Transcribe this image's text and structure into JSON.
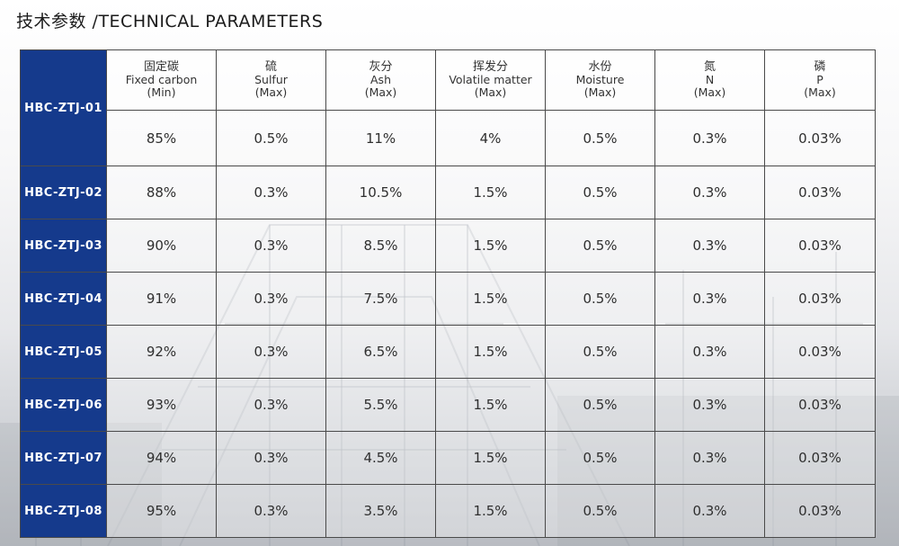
{
  "title": "技术参数 /TECHNICAL PARAMETERS",
  "columns": [
    {
      "cn": "固定碳",
      "en": "Fixed carbon",
      "limit": "(Min)"
    },
    {
      "cn": "硫",
      "en": "Sulfur",
      "limit": "(Max)"
    },
    {
      "cn": "灰分",
      "en": "Ash",
      "limit": "(Max)"
    },
    {
      "cn": "挥发分",
      "en": "Volatile matter",
      "limit": "(Max)"
    },
    {
      "cn": "水份",
      "en": "Moisture",
      "limit": "(Max)"
    },
    {
      "cn": "氮",
      "en": "N",
      "limit": "(Max)"
    },
    {
      "cn": "磷",
      "en": "P",
      "limit": "(Max)"
    }
  ],
  "rows": [
    {
      "model": "HBC-ZTJ-01",
      "values": [
        "85%",
        "0.5%",
        "11%",
        "4%",
        "0.5%",
        "0.3%",
        "0.03%"
      ]
    },
    {
      "model": "HBC-ZTJ-02",
      "values": [
        "88%",
        "0.3%",
        "10.5%",
        "1.5%",
        "0.5%",
        "0.3%",
        "0.03%"
      ]
    },
    {
      "model": "HBC-ZTJ-03",
      "values": [
        "90%",
        "0.3%",
        "8.5%",
        "1.5%",
        "0.5%",
        "0.3%",
        "0.03%"
      ]
    },
    {
      "model": "HBC-ZTJ-04",
      "values": [
        "91%",
        "0.3%",
        "7.5%",
        "1.5%",
        "0.5%",
        "0.3%",
        "0.03%"
      ]
    },
    {
      "model": "HBC-ZTJ-05",
      "values": [
        "92%",
        "0.3%",
        "6.5%",
        "1.5%",
        "0.5%",
        "0.3%",
        "0.03%"
      ]
    },
    {
      "model": "HBC-ZTJ-06",
      "values": [
        "93%",
        "0.3%",
        "5.5%",
        "1.5%",
        "0.5%",
        "0.3%",
        "0.03%"
      ]
    },
    {
      "model": "HBC-ZTJ-07",
      "values": [
        "94%",
        "0.3%",
        "4.5%",
        "1.5%",
        "0.5%",
        "0.3%",
        "0.03%"
      ]
    },
    {
      "model": "HBC-ZTJ-08",
      "values": [
        "95%",
        "0.3%",
        "3.5%",
        "1.5%",
        "0.5%",
        "0.3%",
        "0.03%"
      ]
    }
  ]
}
